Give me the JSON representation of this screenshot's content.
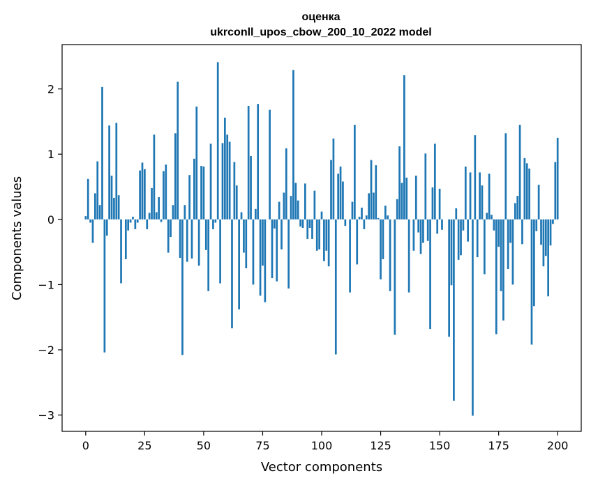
{
  "chart_data": {
    "type": "bar",
    "title": "оценка",
    "subtitle": "ukrconll_upos_cbow_200_10_2022 model",
    "xlabel": "Vector components",
    "ylabel": "Components values",
    "xlim": [
      -10,
      210
    ],
    "ylim": [
      -3.25,
      2.68
    ],
    "xticks": [
      0,
      25,
      50,
      75,
      100,
      125,
      150,
      175,
      200
    ],
    "yticks": [
      -3,
      -2,
      -1,
      0,
      1,
      2
    ],
    "xtick_labels": [
      "0",
      "25",
      "50",
      "75",
      "100",
      "125",
      "150",
      "175",
      "200"
    ],
    "ytick_labels": [
      "−3",
      "−2",
      "−1",
      "0",
      "1",
      "2"
    ],
    "bar_color": "#1f77b4",
    "grid": false,
    "values": [
      0.05,
      0.62,
      -0.05,
      -0.36,
      0.4,
      0.89,
      0.22,
      2.03,
      -2.04,
      -0.25,
      1.44,
      0.67,
      0.33,
      1.48,
      0.37,
      -0.98,
      0.0,
      -0.61,
      -0.17,
      -0.05,
      0.04,
      -0.15,
      -0.05,
      0.75,
      0.87,
      0.77,
      -0.15,
      0.1,
      0.48,
      1.3,
      0.11,
      0.34,
      -0.04,
      0.74,
      0.84,
      -0.51,
      -0.27,
      0.22,
      1.32,
      2.11,
      -0.59,
      -2.08,
      0.22,
      -0.65,
      0.68,
      -0.6,
      0.93,
      1.73,
      -0.71,
      0.82,
      0.81,
      -0.47,
      -1.1,
      1.16,
      -0.15,
      -0.05,
      2.41,
      -0.98,
      1.17,
      1.56,
      1.3,
      1.19,
      -1.67,
      0.88,
      0.52,
      -1.38,
      0.11,
      -0.51,
      -0.75,
      1.74,
      0.97,
      -1.0,
      0.16,
      1.77,
      -1.17,
      -0.71,
      -1.27,
      0.0,
      1.68,
      -0.9,
      -0.14,
      -0.95,
      0.27,
      -0.46,
      0.41,
      1.09,
      -1.06,
      0.36,
      2.29,
      0.56,
      0.29,
      -0.11,
      -0.13,
      0.55,
      -0.3,
      -0.13,
      -0.3,
      0.44,
      -0.48,
      -0.46,
      0.12,
      -0.64,
      -0.48,
      -0.72,
      0.91,
      1.24,
      -2.07,
      0.7,
      0.81,
      0.58,
      -0.1,
      0.0,
      -1.12,
      0.27,
      1.45,
      -0.69,
      0.04,
      0.18,
      -0.15,
      0.06,
      0.4,
      0.91,
      0.41,
      0.83,
      0.02,
      -0.92,
      -0.61,
      0.21,
      0.06,
      -1.1,
      0.0,
      -1.77,
      0.31,
      1.12,
      0.56,
      2.21,
      0.64,
      -1.12,
      0.0,
      -0.48,
      0.67,
      -0.2,
      -0.53,
      -0.36,
      1.01,
      -0.33,
      -1.68,
      0.49,
      1.16,
      -0.22,
      0.47,
      -0.16,
      0.0,
      0.0,
      -1.8,
      -1.01,
      -2.78,
      0.17,
      -0.62,
      -0.55,
      -0.17,
      0.81,
      -0.34,
      0.72,
      -3.01,
      1.29,
      -0.58,
      0.72,
      0.52,
      -0.84,
      0.1,
      0.7,
      0.07,
      -0.17,
      -1.76,
      -0.42,
      -1.1,
      -1.55,
      1.32,
      -0.76,
      -0.36,
      -1.0,
      0.25,
      0.36,
      1.45,
      -0.38,
      0.94,
      0.86,
      0.78,
      -1.92,
      -1.33,
      -0.18,
      0.53,
      -0.39,
      -0.72,
      -0.56,
      -1.18,
      -0.4,
      -0.07,
      0.88,
      1.25
    ]
  }
}
